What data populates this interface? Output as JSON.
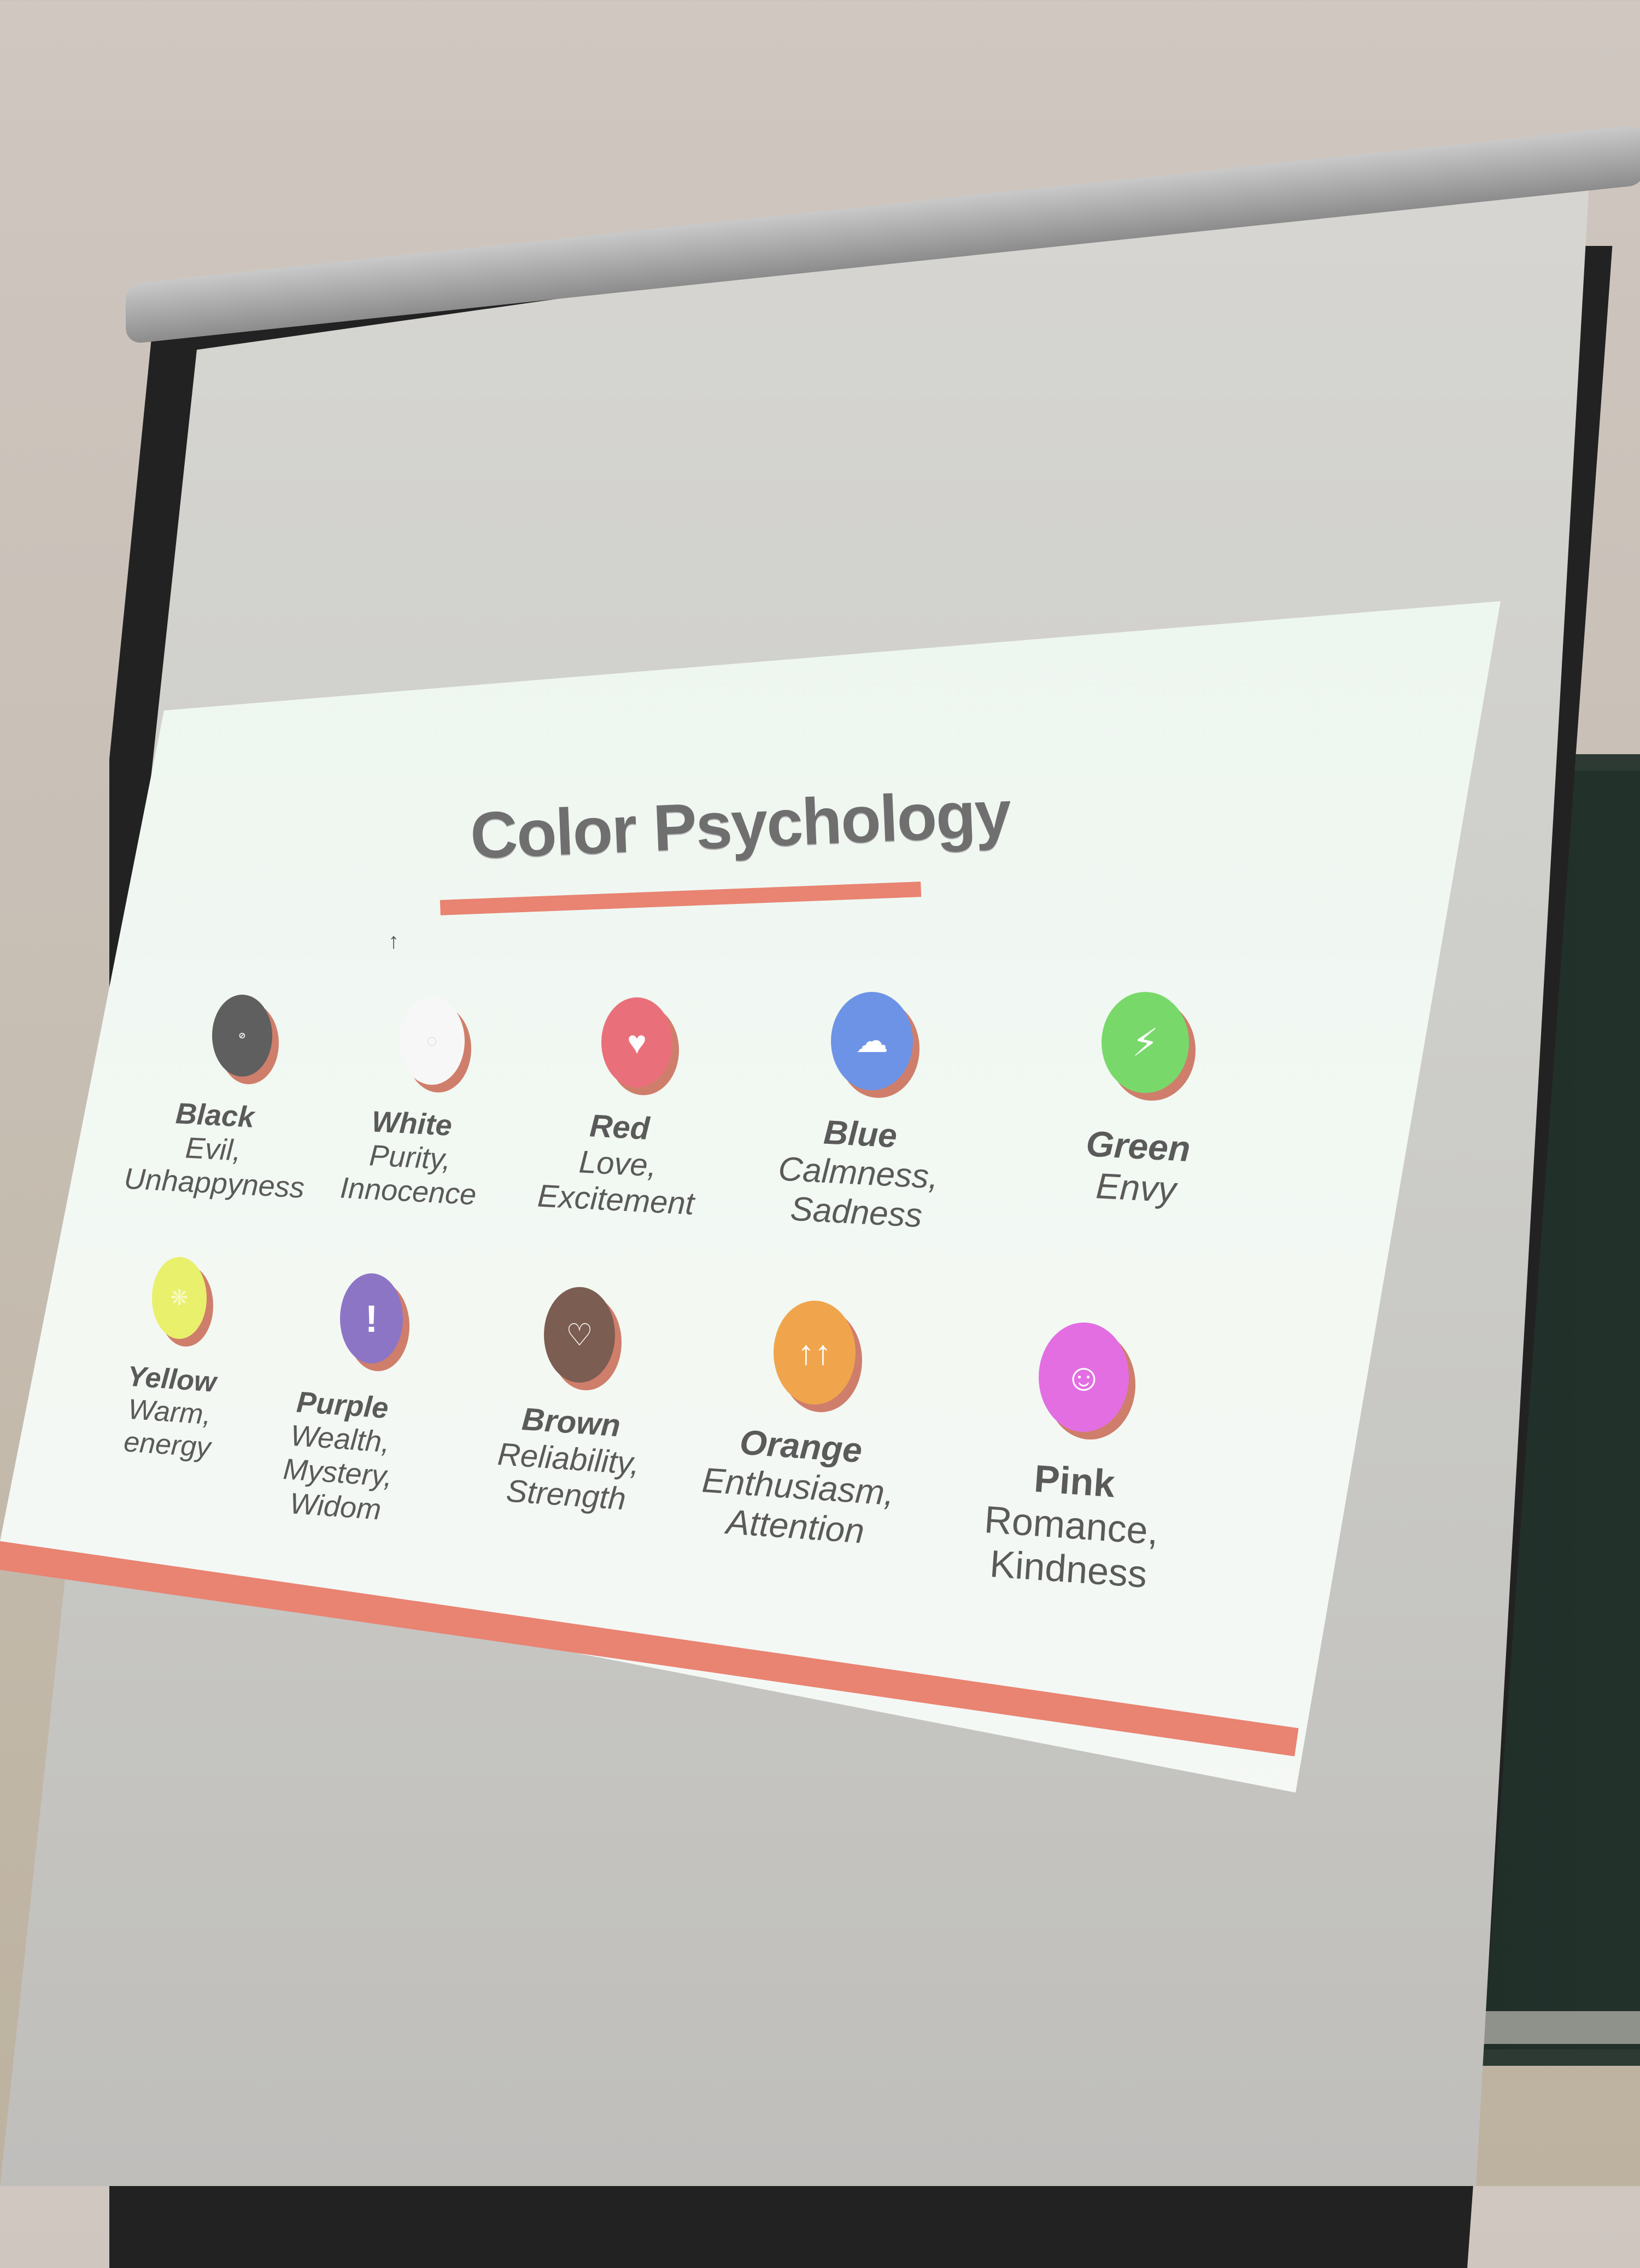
{
  "slide": {
    "title": "Color Psychology",
    "colors": [
      {
        "name": "Black",
        "line1": "Evil,",
        "line2": "Unhappyness",
        "line3": "",
        "color": "#5f5f5f",
        "icon": "ban-icon"
      },
      {
        "name": "White",
        "line1": "Purity,",
        "line2": "Innocence",
        "line3": "",
        "color": "#f7f7f7",
        "icon": "ring-icon"
      },
      {
        "name": "Red",
        "line1": "Love,",
        "line2": "Excitement",
        "line3": "",
        "color": "#e9707a",
        "icon": "heart-icon"
      },
      {
        "name": "Blue",
        "line1": "Calmness,",
        "line2": "Sadness",
        "line3": "",
        "color": "#6d93e6",
        "icon": "cloud-icon"
      },
      {
        "name": "Green",
        "line1": "Envy",
        "line2": "",
        "line3": "",
        "color": "#78d96a",
        "icon": "lightning-icon"
      },
      {
        "name": "Yellow",
        "line1": "Warm,",
        "line2": "energy",
        "line3": "",
        "color": "#e9f06c",
        "icon": "sun-icon"
      },
      {
        "name": "Purple",
        "line1": "Wealth,",
        "line2": "Mystery, Widom",
        "line3": "",
        "color": "#8d75c6",
        "icon": "exclamation-icon"
      },
      {
        "name": "Brown",
        "line1": "Reliability,",
        "line2": "Strength",
        "line3": "",
        "color": "#7c5d52",
        "icon": "broken-heart-icon"
      },
      {
        "name": "Orange",
        "line1": "Enthusiasm,",
        "line2": "Attention",
        "line3": "",
        "color": "#f0a54d",
        "icon": "up-arrows-icon"
      },
      {
        "name": "Pink",
        "line1": "Romance,",
        "line2": "Kindness",
        "line3": "",
        "color": "#e36ee2",
        "icon": "smiley-icon"
      }
    ],
    "accent_color": "#e98372"
  }
}
